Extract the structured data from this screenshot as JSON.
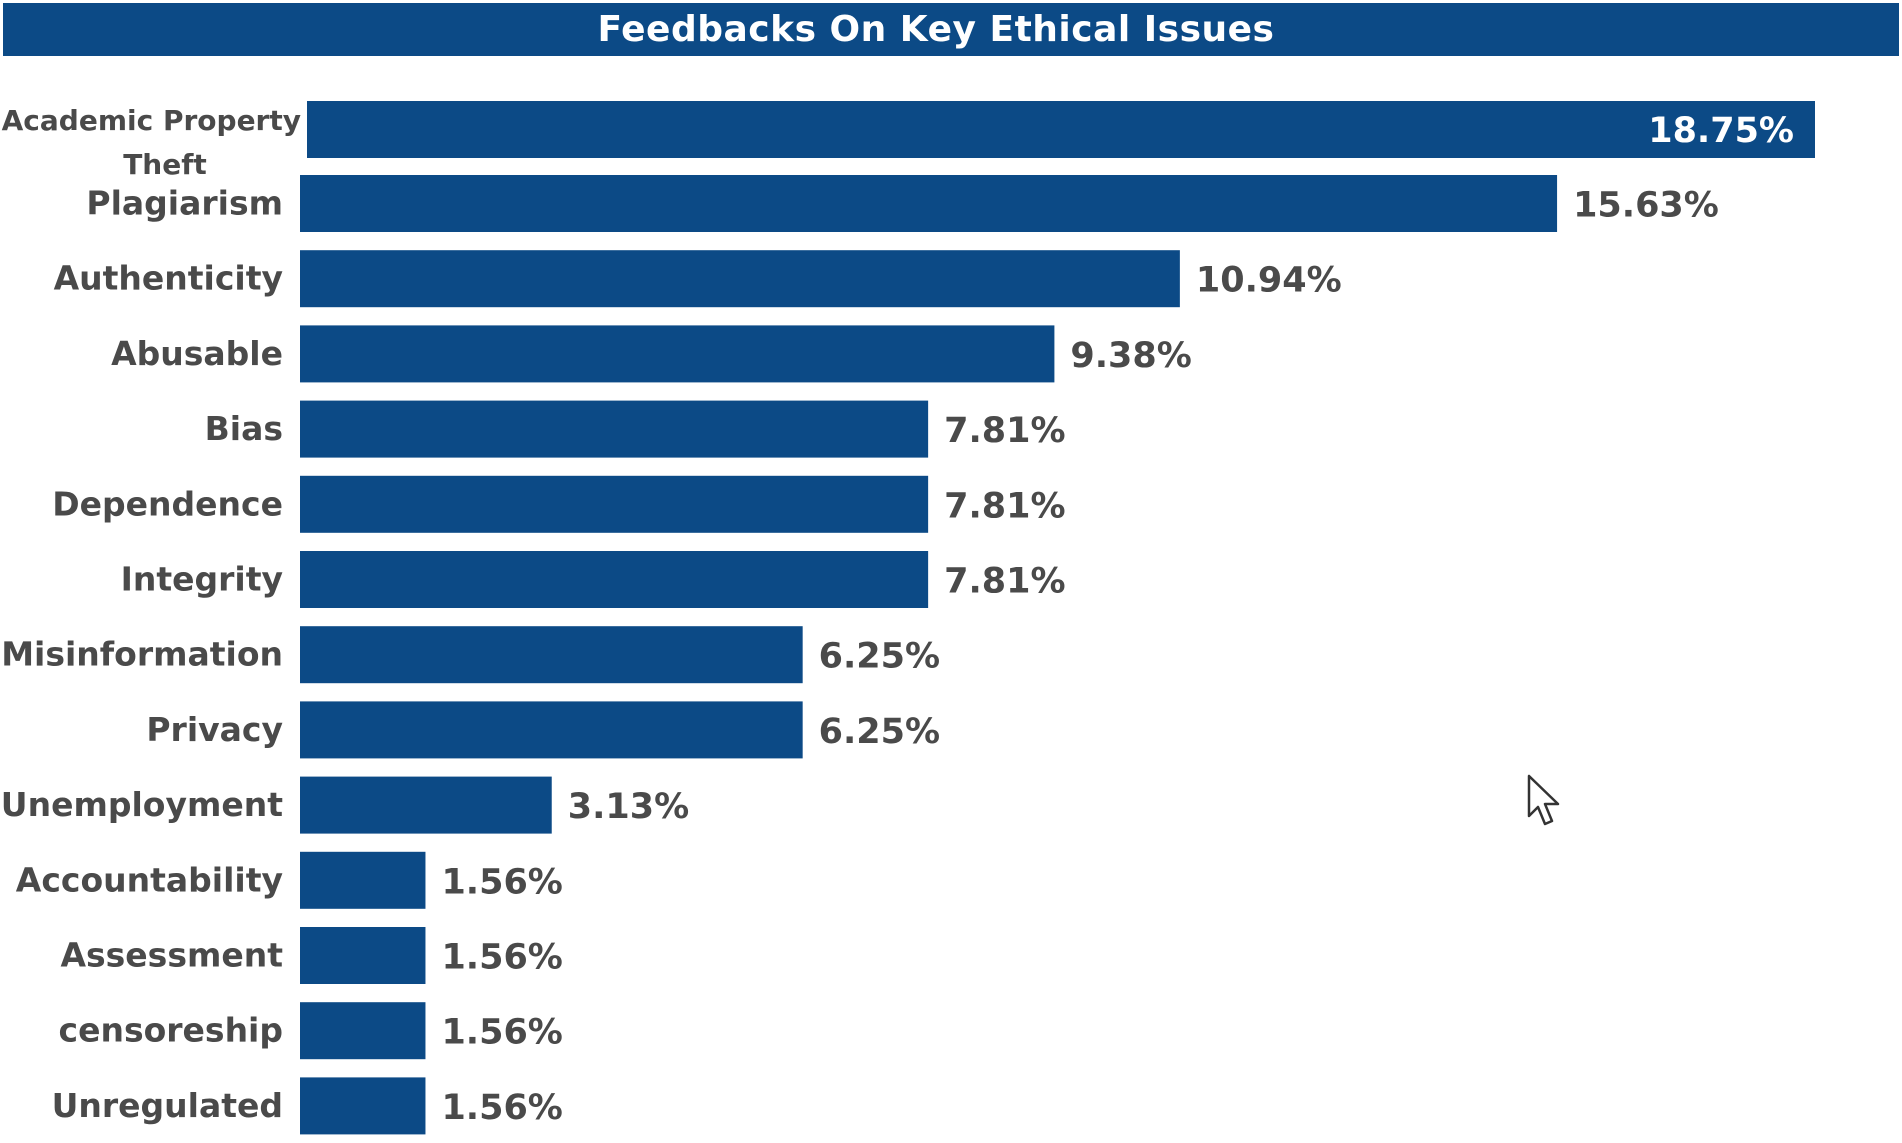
{
  "title": "Feedbacks On Key Ethical Issues",
  "colors": {
    "bar": "#0c4a86",
    "title_bg": "#0c4a86",
    "label": "#4a4a4a"
  },
  "cursor_icon": "mouse-pointer-icon",
  "chart_data": {
    "type": "bar",
    "orientation": "horizontal",
    "title": "Feedbacks On Key Ethical Issues",
    "xlabel": "",
    "ylabel": "",
    "categories": [
      "Academic Property Theft",
      "Plagiarism",
      "Authenticity",
      "Abusable",
      "Bias",
      "Dependence",
      "Integrity",
      "Misinformation",
      "Privacy",
      "Unemployment",
      "Accountability",
      "Assessment",
      "censoreship",
      "Unregulated"
    ],
    "values": [
      18.75,
      15.63,
      10.94,
      9.38,
      7.81,
      7.81,
      7.81,
      6.25,
      6.25,
      3.13,
      1.56,
      1.56,
      1.56,
      1.56
    ],
    "value_labels": [
      "18.75%",
      "15.63%",
      "10.94%",
      "9.38%",
      "7.81%",
      "7.81%",
      "7.81%",
      "6.25%",
      "6.25%",
      "3.13%",
      "1.56%",
      "1.56%",
      "1.56%",
      "1.56%"
    ],
    "grid": false,
    "legend": "none"
  }
}
